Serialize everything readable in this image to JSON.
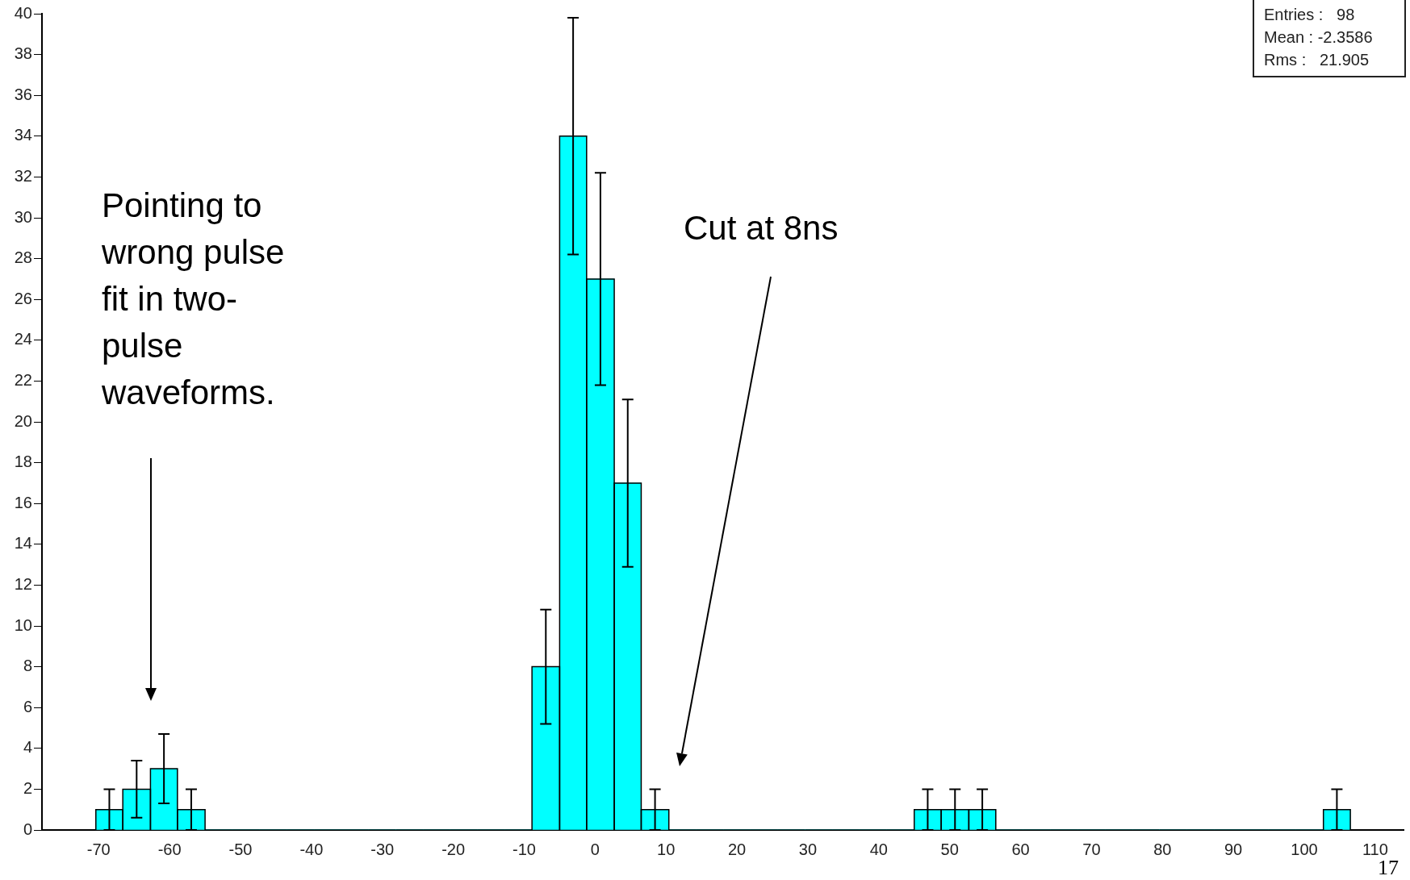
{
  "chart_data": {
    "type": "histogram",
    "bins": [
      -70.4,
      -66.6,
      -62.7,
      -58.9,
      -55.0,
      -51.2,
      -47.3,
      -43.5,
      -39.6,
      -35.8,
      -31.9,
      -28.1,
      -24.3,
      -20.4,
      -16.6,
      -12.7,
      -8.9,
      -5.0,
      -1.2,
      2.7,
      6.5,
      10.4,
      14.2,
      18.1,
      21.9,
      25.8,
      29.6,
      33.4,
      37.3,
      41.1,
      45.0,
      48.8,
      52.7,
      56.5,
      60.4,
      64.2,
      68.1,
      71.9,
      75.8,
      79.6,
      83.4,
      87.3,
      91.1,
      95.0,
      98.8,
      102.7,
      106.5
    ],
    "values": [
      1,
      2,
      3,
      1,
      0,
      0,
      0,
      0,
      0,
      0,
      0,
      0,
      0,
      0,
      0,
      0,
      8,
      34,
      27,
      17,
      1,
      0,
      0,
      0,
      0,
      0,
      0,
      0,
      0,
      0,
      1,
      1,
      1,
      0,
      0,
      0,
      0,
      0,
      0,
      0,
      0,
      0,
      0,
      0,
      0,
      1
    ],
    "errors": [
      1,
      1.4,
      1.7,
      1,
      null,
      null,
      null,
      null,
      null,
      null,
      null,
      null,
      null,
      null,
      null,
      null,
      2.8,
      5.8,
      5.2,
      4.1,
      1,
      null,
      null,
      null,
      null,
      null,
      null,
      null,
      null,
      null,
      1,
      1,
      1,
      null,
      null,
      null,
      null,
      null,
      null,
      null,
      null,
      null,
      null,
      null,
      null,
      1
    ],
    "color": "#00ffff",
    "xlim": [
      -78,
      114
    ],
    "xticks": [
      -70,
      -60,
      -50,
      -40,
      -30,
      -20,
      -10,
      0,
      10,
      20,
      30,
      40,
      50,
      60,
      70,
      80,
      90,
      100,
      110
    ],
    "ylim": [
      0,
      40
    ],
    "yticks": [
      0,
      2,
      4,
      6,
      8,
      10,
      12,
      14,
      16,
      18,
      20,
      22,
      24,
      26,
      28,
      30,
      32,
      34,
      36,
      38,
      40
    ],
    "grid": false,
    "legend": false,
    "annotations": [
      "Pointing to wrong pulse fit in two-pulse waveforms.",
      "Cut at 8ns",
      "Entries :   98",
      "Mean : -2.3586",
      "Rms :   21.905",
      "17"
    ]
  }
}
